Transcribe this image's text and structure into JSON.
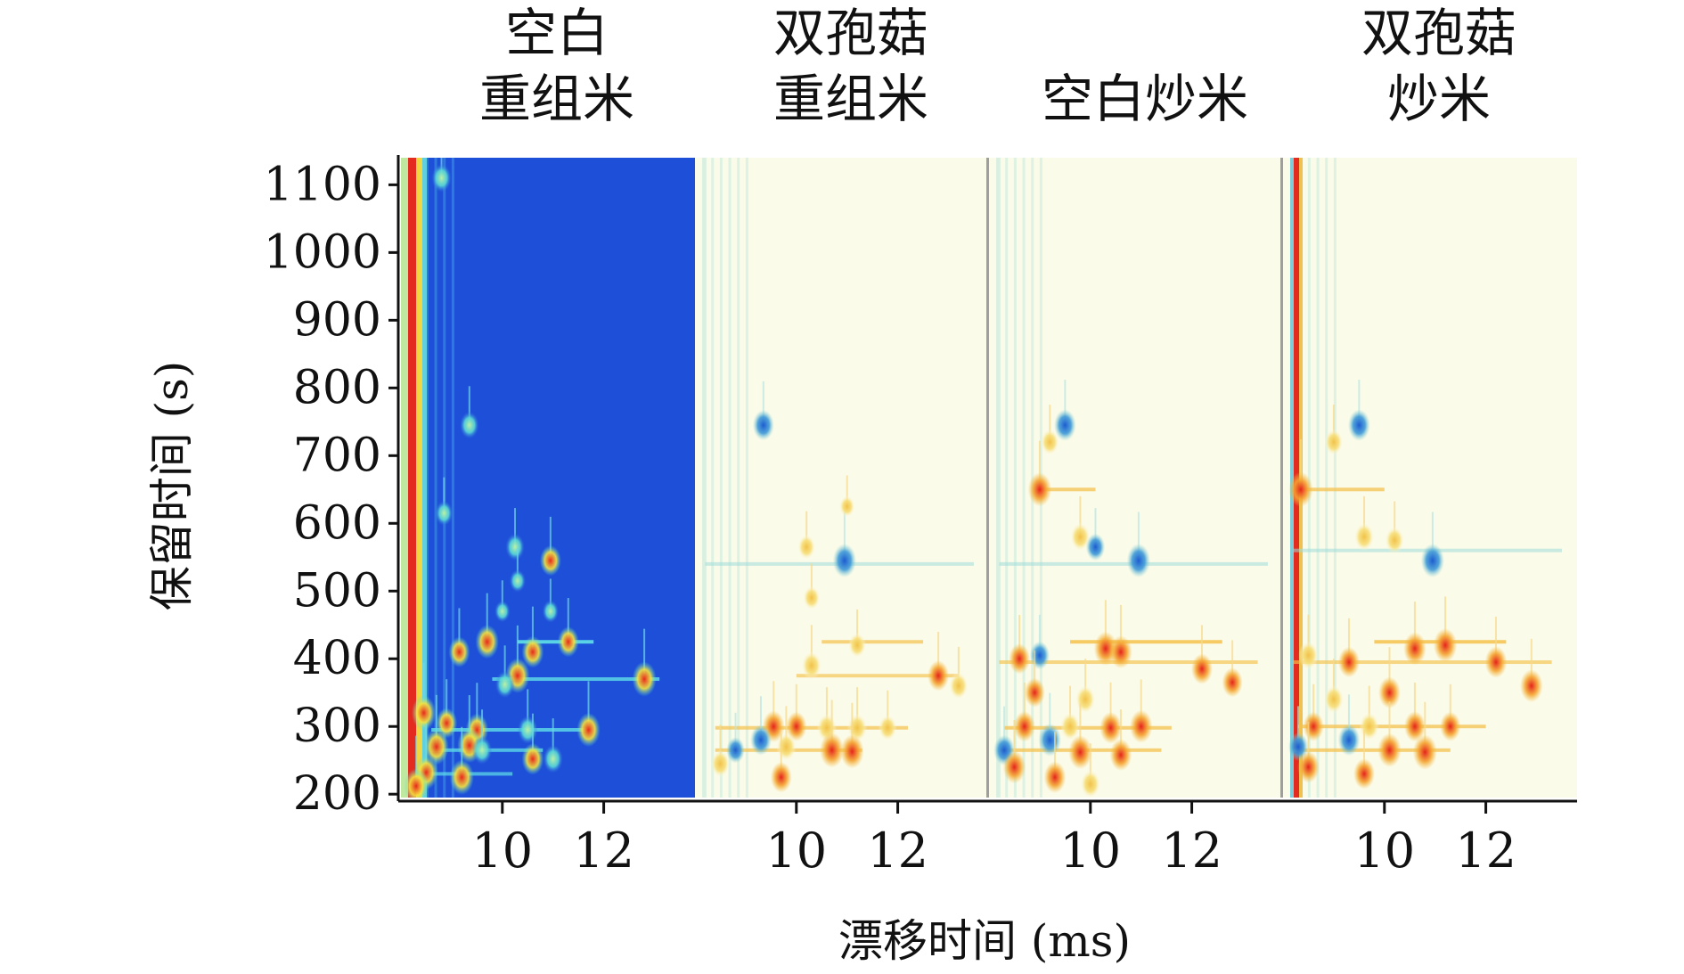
{
  "chart_data": {
    "type": "heatmap",
    "description_units": {
      "x": "ms",
      "y": "s"
    },
    "ylabel": "保留时间 (s)",
    "xlabel": "漂移时间 (ms)",
    "yticks": [
      200,
      300,
      400,
      500,
      600,
      700,
      800,
      900,
      1000,
      1100
    ],
    "xticks": [
      10,
      12
    ],
    "ylim": [
      195,
      1140
    ],
    "xlim": [
      8.0,
      13.8
    ],
    "panels": [
      {
        "title": [
          "空白",
          "重组米"
        ],
        "mode": "reference",
        "peaks": [
          {
            "x": 8.8,
            "y": 1110,
            "v": 0.6
          },
          {
            "x": 9.35,
            "y": 745,
            "v": 0.55
          },
          {
            "x": 8.85,
            "y": 615,
            "v": 0.45
          },
          {
            "x": 10.25,
            "y": 565,
            "v": 0.55
          },
          {
            "x": 10.95,
            "y": 545,
            "v": 0.7
          },
          {
            "x": 10.3,
            "y": 515,
            "v": 0.35
          },
          {
            "x": 10.0,
            "y": 470,
            "v": 0.3
          },
          {
            "x": 10.95,
            "y": 470,
            "v": 0.35
          },
          {
            "x": 9.15,
            "y": 410,
            "v": 0.7
          },
          {
            "x": 9.7,
            "y": 425,
            "v": 0.85
          },
          {
            "x": 10.6,
            "y": 410,
            "v": 0.75
          },
          {
            "x": 11.3,
            "y": 425,
            "v": 0.7
          },
          {
            "x": 10.3,
            "y": 375,
            "v": 0.9
          },
          {
            "x": 10.05,
            "y": 362,
            "v": 0.55
          },
          {
            "x": 12.8,
            "y": 370,
            "v": 0.9
          },
          {
            "x": 8.45,
            "y": 320,
            "v": 0.9
          },
          {
            "x": 8.9,
            "y": 305,
            "v": 0.7
          },
          {
            "x": 9.5,
            "y": 295,
            "v": 0.8
          },
          {
            "x": 10.5,
            "y": 295,
            "v": 0.6
          },
          {
            "x": 11.7,
            "y": 295,
            "v": 0.85
          },
          {
            "x": 8.7,
            "y": 270,
            "v": 0.95
          },
          {
            "x": 9.35,
            "y": 272,
            "v": 0.9
          },
          {
            "x": 9.6,
            "y": 265,
            "v": 0.6
          },
          {
            "x": 10.6,
            "y": 252,
            "v": 0.75
          },
          {
            "x": 11.0,
            "y": 252,
            "v": 0.6
          },
          {
            "x": 8.5,
            "y": 232,
            "v": 0.85
          },
          {
            "x": 9.2,
            "y": 225,
            "v": 0.9
          },
          {
            "x": 8.3,
            "y": 212,
            "v": 0.9
          }
        ],
        "streaks": [
          {
            "y": 425,
            "x0": 10.3,
            "x1": 11.8,
            "v": 0.55
          },
          {
            "y": 370,
            "x0": 9.8,
            "x1": 13.1,
            "v": 0.45
          },
          {
            "y": 295,
            "x0": 8.6,
            "x1": 11.7,
            "v": 0.45
          },
          {
            "y": 265,
            "x0": 8.6,
            "x1": 10.8,
            "v": 0.4
          },
          {
            "y": 230,
            "x0": 8.3,
            "x1": 10.2,
            "v": 0.35
          }
        ]
      },
      {
        "title": [
          "双孢菇",
          "重组米"
        ],
        "mode": "difference",
        "peaks": [
          {
            "x": 9.35,
            "y": 745,
            "v": -0.7
          },
          {
            "x": 10.95,
            "y": 545,
            "v": -0.85
          },
          {
            "x": 10.2,
            "y": 565,
            "v": 0.45
          },
          {
            "x": 11.0,
            "y": 625,
            "v": 0.3
          },
          {
            "x": 10.3,
            "y": 490,
            "v": 0.4
          },
          {
            "x": 10.3,
            "y": 390,
            "v": 0.6
          },
          {
            "x": 11.2,
            "y": 420,
            "v": 0.45
          },
          {
            "x": 12.8,
            "y": 375,
            "v": 0.7
          },
          {
            "x": 13.2,
            "y": 360,
            "v": 0.55
          },
          {
            "x": 9.55,
            "y": 300,
            "v": 0.75
          },
          {
            "x": 10.0,
            "y": 300,
            "v": 0.65
          },
          {
            "x": 10.6,
            "y": 298,
            "v": 0.6
          },
          {
            "x": 11.2,
            "y": 298,
            "v": 0.6
          },
          {
            "x": 11.8,
            "y": 298,
            "v": 0.5
          },
          {
            "x": 9.8,
            "y": 270,
            "v": 0.6
          },
          {
            "x": 10.7,
            "y": 265,
            "v": 0.9
          },
          {
            "x": 11.1,
            "y": 263,
            "v": 0.85
          },
          {
            "x": 9.3,
            "y": 280,
            "v": -0.7
          },
          {
            "x": 8.8,
            "y": 265,
            "v": -0.5
          },
          {
            "x": 8.5,
            "y": 245,
            "v": 0.55
          },
          {
            "x": 9.7,
            "y": 225,
            "v": 0.7
          }
        ],
        "streaks": [
          {
            "y": 425,
            "x0": 10.5,
            "x1": 12.5,
            "v": 0.35
          },
          {
            "y": 375,
            "x0": 10.0,
            "x1": 13.2,
            "v": 0.3
          },
          {
            "y": 298,
            "x0": 8.4,
            "x1": 12.2,
            "v": 0.35
          },
          {
            "y": 265,
            "x0": 8.4,
            "x1": 11.3,
            "v": 0.35
          },
          {
            "y": 540,
            "x0": 8.2,
            "x1": 13.5,
            "v": -0.2
          }
        ]
      },
      {
        "title": [
          "",
          "空白炒米"
        ],
        "mode": "difference",
        "peaks": [
          {
            "x": 9.5,
            "y": 745,
            "v": -0.75
          },
          {
            "x": 9.2,
            "y": 720,
            "v": 0.5
          },
          {
            "x": 9.0,
            "y": 650,
            "v": 0.85
          },
          {
            "x": 9.8,
            "y": 580,
            "v": 0.6
          },
          {
            "x": 10.1,
            "y": 565,
            "v": -0.55
          },
          {
            "x": 10.95,
            "y": 545,
            "v": -0.85
          },
          {
            "x": 10.3,
            "y": 415,
            "v": 0.85
          },
          {
            "x": 10.6,
            "y": 410,
            "v": 0.8
          },
          {
            "x": 12.2,
            "y": 385,
            "v": 0.7
          },
          {
            "x": 12.8,
            "y": 365,
            "v": 0.65
          },
          {
            "x": 8.6,
            "y": 400,
            "v": 0.7
          },
          {
            "x": 9.0,
            "y": 405,
            "v": -0.6
          },
          {
            "x": 8.9,
            "y": 350,
            "v": 0.65
          },
          {
            "x": 9.9,
            "y": 340,
            "v": 0.6
          },
          {
            "x": 8.7,
            "y": 300,
            "v": 0.7
          },
          {
            "x": 9.6,
            "y": 300,
            "v": 0.6
          },
          {
            "x": 10.4,
            "y": 298,
            "v": 0.75
          },
          {
            "x": 11.0,
            "y": 300,
            "v": 0.8
          },
          {
            "x": 9.2,
            "y": 280,
            "v": -0.8
          },
          {
            "x": 8.3,
            "y": 265,
            "v": -0.7
          },
          {
            "x": 9.8,
            "y": 262,
            "v": 0.85
          },
          {
            "x": 10.6,
            "y": 258,
            "v": 0.75
          },
          {
            "x": 8.5,
            "y": 240,
            "v": 0.8
          },
          {
            "x": 9.3,
            "y": 225,
            "v": 0.75
          },
          {
            "x": 10.0,
            "y": 215,
            "v": 0.6
          }
        ],
        "streaks": [
          {
            "y": 650,
            "x0": 9.0,
            "x1": 10.1,
            "v": 0.4
          },
          {
            "y": 425,
            "x0": 9.6,
            "x1": 12.6,
            "v": 0.5
          },
          {
            "y": 395,
            "x0": 8.2,
            "x1": 13.3,
            "v": 0.3
          },
          {
            "y": 298,
            "x0": 8.3,
            "x1": 11.6,
            "v": 0.4
          },
          {
            "y": 265,
            "x0": 8.2,
            "x1": 11.4,
            "v": 0.4
          },
          {
            "y": 540,
            "x0": 8.2,
            "x1": 13.5,
            "v": -0.2
          }
        ]
      },
      {
        "title": [
          "双孢菇",
          "炒米"
        ],
        "mode": "difference",
        "peaks": [
          {
            "x": 9.5,
            "y": 745,
            "v": -0.75
          },
          {
            "x": 9.0,
            "y": 720,
            "v": 0.5
          },
          {
            "x": 8.35,
            "y": 650,
            "v": 0.9
          },
          {
            "x": 9.6,
            "y": 580,
            "v": 0.6
          },
          {
            "x": 10.2,
            "y": 575,
            "v": 0.55
          },
          {
            "x": 10.95,
            "y": 545,
            "v": -0.85
          },
          {
            "x": 10.6,
            "y": 415,
            "v": 0.8
          },
          {
            "x": 11.2,
            "y": 420,
            "v": 0.85
          },
          {
            "x": 12.2,
            "y": 395,
            "v": 0.75
          },
          {
            "x": 12.9,
            "y": 360,
            "v": 0.8
          },
          {
            "x": 8.5,
            "y": 405,
            "v": 0.6
          },
          {
            "x": 9.3,
            "y": 395,
            "v": 0.7
          },
          {
            "x": 9.0,
            "y": 340,
            "v": 0.6
          },
          {
            "x": 10.1,
            "y": 350,
            "v": 0.75
          },
          {
            "x": 8.6,
            "y": 300,
            "v": 0.65
          },
          {
            "x": 9.7,
            "y": 300,
            "v": 0.6
          },
          {
            "x": 10.6,
            "y": 300,
            "v": 0.7
          },
          {
            "x": 11.3,
            "y": 300,
            "v": 0.65
          },
          {
            "x": 9.3,
            "y": 280,
            "v": -0.75
          },
          {
            "x": 8.3,
            "y": 270,
            "v": -0.6
          },
          {
            "x": 10.1,
            "y": 265,
            "v": 0.85
          },
          {
            "x": 10.8,
            "y": 262,
            "v": 0.9
          },
          {
            "x": 8.5,
            "y": 240,
            "v": 0.75
          },
          {
            "x": 9.6,
            "y": 230,
            "v": 0.7
          }
        ],
        "streaks": [
          {
            "y": 650,
            "x0": 8.4,
            "x1": 10.0,
            "v": 0.4
          },
          {
            "y": 425,
            "x0": 9.8,
            "x1": 12.4,
            "v": 0.5
          },
          {
            "y": 395,
            "x0": 8.2,
            "x1": 13.3,
            "v": 0.3
          },
          {
            "y": 300,
            "x0": 8.3,
            "x1": 12.0,
            "v": 0.4
          },
          {
            "y": 265,
            "x0": 8.2,
            "x1": 11.3,
            "v": 0.4
          },
          {
            "y": 560,
            "x0": 8.2,
            "x1": 13.5,
            "v": -0.2
          }
        ]
      }
    ],
    "colors": {
      "reference_bg": "#1e4fd8",
      "diff_bg": "#fbfbe9",
      "diff_pos": "#e5241c",
      "diff_pos_soft": "#f2c24a",
      "diff_neg": "#1d5cd0",
      "diff_neg_soft": "#8fd9d2",
      "rip_red": "#e32b1f",
      "separator": "#9e9e9e"
    }
  }
}
